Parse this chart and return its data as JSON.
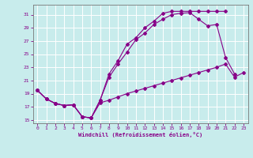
{
  "xlabel": "Windchill (Refroidissement éolien,°C)",
  "bg_color": "#c8ecec",
  "line_color": "#880088",
  "grid_color": "#ffffff",
  "xlim": [
    -0.5,
    23.5
  ],
  "ylim": [
    14.5,
    32.5
  ],
  "yticks": [
    15,
    17,
    19,
    21,
    23,
    25,
    27,
    29,
    31
  ],
  "xticks": [
    0,
    1,
    2,
    3,
    4,
    5,
    6,
    7,
    8,
    9,
    10,
    11,
    12,
    13,
    14,
    15,
    16,
    17,
    18,
    19,
    20,
    21,
    22,
    23
  ],
  "line1_x": [
    0,
    1,
    2,
    3,
    4,
    5,
    6,
    7,
    8,
    9,
    10,
    11,
    12,
    13,
    14,
    15,
    16,
    17,
    18,
    19,
    20,
    21,
    22,
    23
  ],
  "line1_y": [
    19.5,
    18.2,
    17.5,
    17.2,
    17.3,
    15.5,
    15.3,
    17.6,
    18.0,
    18.5,
    19.0,
    19.4,
    19.8,
    20.2,
    20.6,
    21.0,
    21.4,
    21.8,
    22.2,
    22.6,
    23.0,
    23.5,
    21.5,
    22.2
  ],
  "line2_x": [
    0,
    1,
    2,
    3,
    4,
    5,
    6,
    7,
    8,
    9,
    10,
    11,
    12,
    13,
    14,
    15,
    16,
    17,
    18,
    19,
    20,
    21,
    22,
    23
  ],
  "line2_y": [
    19.5,
    18.2,
    17.5,
    17.2,
    17.3,
    15.5,
    15.3,
    18.0,
    21.5,
    23.5,
    25.3,
    27.2,
    28.2,
    29.5,
    30.3,
    31.0,
    31.2,
    31.3,
    30.3,
    29.3,
    29.5,
    24.5,
    22.0,
    null
  ],
  "line3_x": [
    0,
    1,
    2,
    3,
    4,
    5,
    6,
    7,
    8,
    9,
    10,
    11,
    12,
    13,
    14,
    15,
    16,
    17,
    18,
    19,
    20,
    21,
    22,
    23
  ],
  "line3_y": [
    19.5,
    18.2,
    17.5,
    17.2,
    17.3,
    15.5,
    15.3,
    18.0,
    22.0,
    24.0,
    26.5,
    27.5,
    29.0,
    30.0,
    31.2,
    31.5,
    31.5,
    31.5,
    31.5,
    31.5,
    31.5,
    31.5,
    null,
    null
  ]
}
